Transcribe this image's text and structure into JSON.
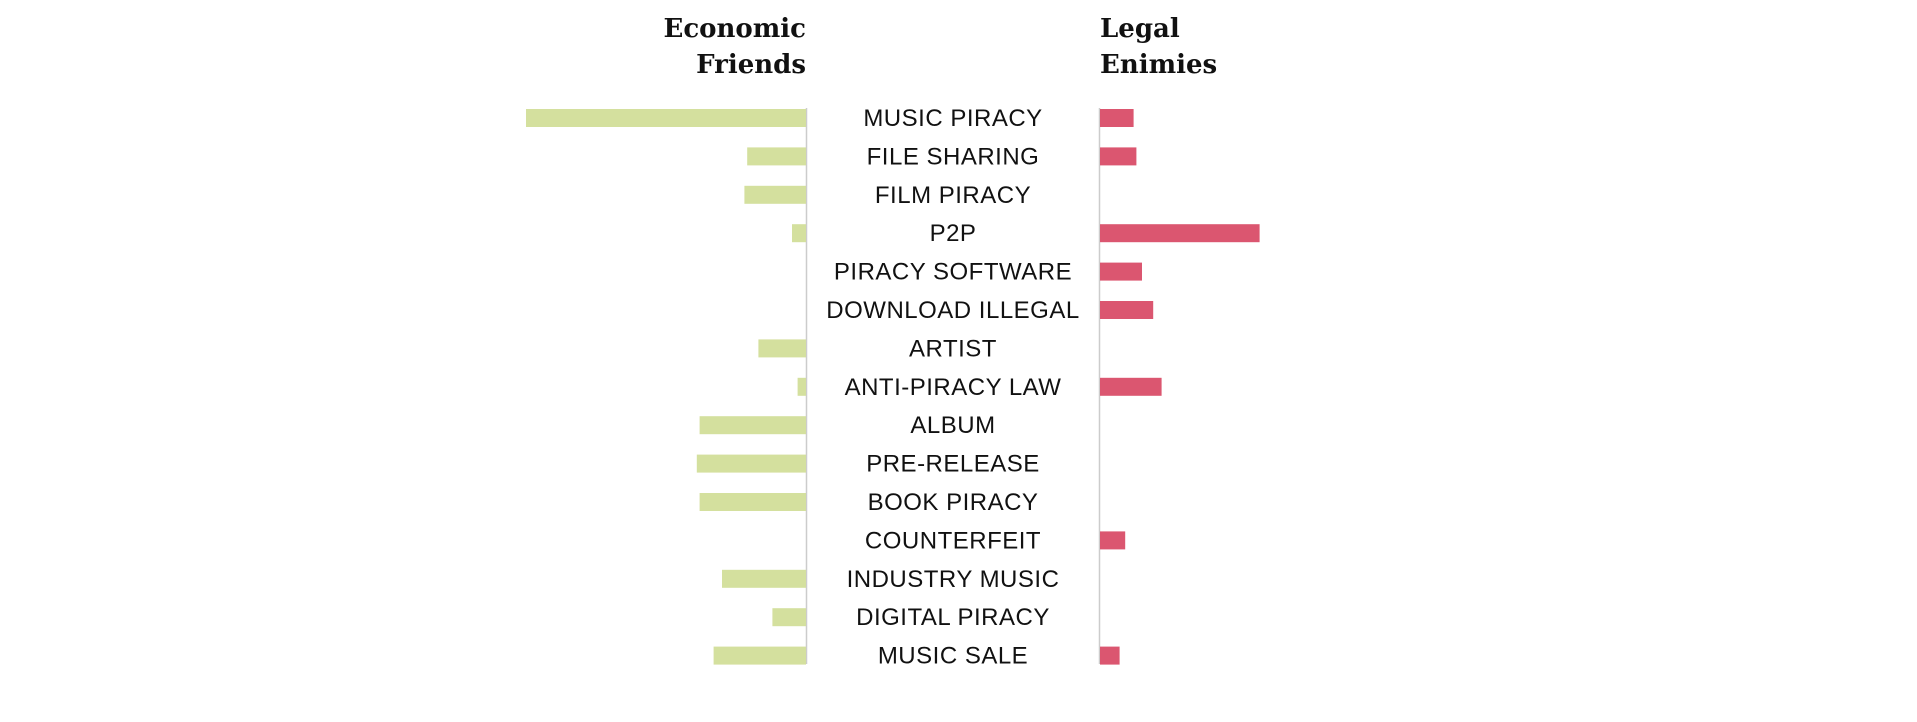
{
  "chart_data": {
    "type": "bar",
    "title": "",
    "left_header": [
      "Economic",
      "Friends"
    ],
    "right_header": [
      "Legal",
      "Enimies"
    ],
    "categories": [
      "MUSIC PIRACY",
      "FILE SHARING",
      "FILM PIRACY",
      "P2P",
      "PIRACY SOFTWARE",
      "DOWNLOAD ILLEGAL",
      "ARTIST",
      "ANTI-PIRACY LAW",
      "ALBUM",
      "PRE-RELEASE",
      "BOOK PIRACY",
      "COUNTERFEIT",
      "INDUSTRY MUSIC",
      "DIGITAL PIRACY",
      "MUSIC SALE"
    ],
    "series": [
      {
        "side": "left",
        "values": [
          100,
          21,
          22,
          5,
          0,
          0,
          17,
          3,
          38,
          39,
          38,
          0,
          30,
          12,
          33
        ]
      },
      {
        "side": "right",
        "values": [
          12,
          13,
          0,
          57,
          15,
          19,
          0,
          22,
          0,
          0,
          0,
          9,
          0,
          0,
          7
        ]
      }
    ],
    "xlim": [
      0,
      100
    ],
    "grid": false,
    "legend": "none",
    "colors": {
      "left": "#d4e09e",
      "right": "#db5670",
      "axis": "#cccccc",
      "text": "#111111"
    }
  }
}
